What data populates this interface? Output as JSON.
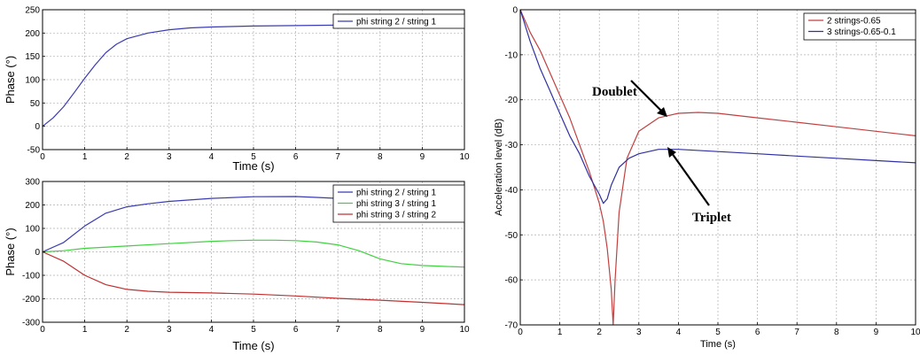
{
  "chart_data": [
    {
      "type": "line",
      "xlabel": "Time (s)",
      "ylabel": "Phase (°)",
      "xlim": [
        0,
        10
      ],
      "ylim": [
        -50,
        250
      ],
      "xticks": [
        0,
        1,
        2,
        3,
        4,
        5,
        6,
        7,
        8,
        9,
        10
      ],
      "yticks": [
        -50,
        0,
        50,
        100,
        150,
        200,
        250
      ],
      "grid": true,
      "legend_position": "top-right",
      "series": [
        {
          "name": "phi string 2 / string 1",
          "color": "#3b3bb0",
          "x": [
            0,
            0.25,
            0.5,
            0.75,
            1,
            1.25,
            1.5,
            1.75,
            2,
            2.5,
            3,
            3.5,
            4,
            5,
            6,
            7,
            8,
            9,
            10
          ],
          "y": [
            0,
            18,
            42,
            72,
            103,
            132,
            158,
            176,
            188,
            200,
            207,
            211,
            213,
            215,
            216,
            217,
            218,
            218,
            218
          ]
        }
      ]
    },
    {
      "type": "line",
      "xlabel": "Time (s)",
      "ylabel": "Phase (°)",
      "xlim": [
        0,
        10
      ],
      "ylim": [
        -300,
        300
      ],
      "xticks": [
        0,
        1,
        2,
        3,
        4,
        5,
        6,
        7,
        8,
        9,
        10
      ],
      "yticks": [
        -300,
        -200,
        -100,
        0,
        100,
        200,
        300
      ],
      "grid": true,
      "legend_position": "top-right",
      "series": [
        {
          "name": "phi string 2 / string 1",
          "color": "#3b3bb0",
          "x": [
            0,
            0.5,
            1,
            1.5,
            2,
            2.5,
            3,
            4,
            5,
            6,
            6.5,
            7,
            7.5,
            8,
            8.5,
            9,
            9.5,
            10
          ],
          "y": [
            0,
            40,
            110,
            165,
            192,
            205,
            215,
            228,
            235,
            236,
            232,
            228,
            215,
            200,
            190,
            180,
            172,
            168
          ]
        },
        {
          "name": "phi string 3 / string 1",
          "color": "#40d040",
          "x": [
            0,
            0.5,
            1,
            2,
            3,
            4,
            4.5,
            5,
            5.5,
            6,
            6.5,
            7,
            7.5,
            8,
            8.5,
            9,
            9.5,
            10
          ],
          "y": [
            0,
            5,
            15,
            25,
            35,
            45,
            48,
            50,
            50,
            48,
            42,
            30,
            5,
            -30,
            -50,
            -58,
            -62,
            -65
          ]
        },
        {
          "name": "phi string 3 / string 2",
          "color": "#c03030",
          "x": [
            0,
            0.5,
            1,
            1.5,
            2,
            2.5,
            3,
            4,
            5,
            6,
            7,
            8,
            9,
            10
          ],
          "y": [
            0,
            -40,
            -100,
            -140,
            -160,
            -168,
            -172,
            -175,
            -180,
            -188,
            -198,
            -206,
            -215,
            -225
          ]
        }
      ]
    },
    {
      "type": "line",
      "xlabel": "Time (s)",
      "ylabel": "Acceleration level (dB)",
      "xlim": [
        0,
        10
      ],
      "ylim": [
        -70,
        0
      ],
      "xticks": [
        0,
        1,
        2,
        3,
        4,
        5,
        6,
        7,
        8,
        9,
        10
      ],
      "yticks": [
        -70,
        -60,
        -50,
        -40,
        -30,
        -20,
        -10,
        0
      ],
      "grid": true,
      "legend_position": "top-right",
      "annotations": [
        "Doublet",
        "Triplet"
      ],
      "series": [
        {
          "name": "2 strings-0.65",
          "color": "#c04040",
          "x": [
            0,
            0.25,
            0.5,
            0.75,
            1,
            1.25,
            1.5,
            1.75,
            2,
            2.1,
            2.2,
            2.3,
            2.35,
            2.4,
            2.5,
            2.7,
            3,
            3.5,
            4,
            4.5,
            5,
            6,
            7,
            8,
            9,
            10
          ],
          "y": [
            0,
            -5,
            -9,
            -14,
            -19,
            -24,
            -30,
            -36,
            -43,
            -47,
            -53,
            -62,
            -70,
            -60,
            -45,
            -33,
            -27,
            -24,
            -23,
            -22.8,
            -23,
            -24,
            -25,
            -26,
            -27,
            -28
          ]
        },
        {
          "name": "3 strings-0.65-0.1",
          "color": "#3030a0",
          "x": [
            0,
            0.25,
            0.5,
            0.75,
            1,
            1.25,
            1.5,
            1.75,
            2,
            2.1,
            2.2,
            2.3,
            2.5,
            2.75,
            3,
            3.5,
            4,
            5,
            6,
            7,
            8,
            9,
            10
          ],
          "y": [
            0,
            -7,
            -13,
            -18,
            -23,
            -28,
            -32,
            -37,
            -41,
            -43,
            -42,
            -39,
            -35,
            -33,
            -32,
            -31,
            -31,
            -31.5,
            -32,
            -32.5,
            -33,
            -33.5,
            -34
          ]
        }
      ]
    }
  ]
}
